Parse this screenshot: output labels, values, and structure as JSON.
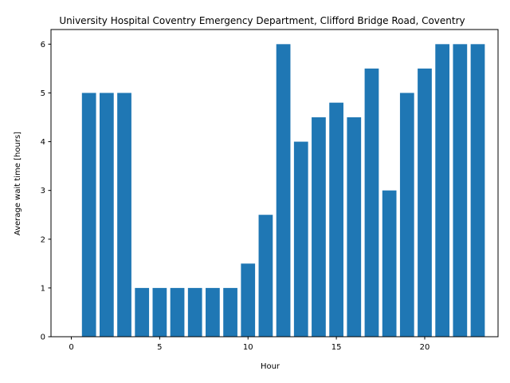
{
  "chart_data": {
    "type": "bar",
    "title": "University Hospital Coventry Emergency Department, Clifford Bridge Road, Coventry",
    "xlabel": "Hour",
    "ylabel": "Average wait time [hours]",
    "x": [
      0,
      1,
      2,
      3,
      4,
      5,
      6,
      7,
      8,
      9,
      10,
      11,
      12,
      13,
      14,
      15,
      16,
      17,
      18,
      19,
      20,
      21,
      22,
      23
    ],
    "values": [
      0,
      5,
      5,
      5,
      1,
      1,
      1,
      1,
      1,
      1,
      1.5,
      2.5,
      6,
      4,
      4.5,
      4.8,
      4.5,
      5.5,
      3,
      5,
      5.5,
      6,
      6,
      6
    ],
    "xlim": [
      -1.15,
      24.15
    ],
    "ylim": [
      0,
      6.3
    ],
    "xticks": [
      0,
      5,
      10,
      15,
      20
    ],
    "yticks": [
      0,
      1,
      2,
      3,
      4,
      5,
      6
    ],
    "bar_color": "#1f77b4",
    "grid": false,
    "legend": "none"
  }
}
